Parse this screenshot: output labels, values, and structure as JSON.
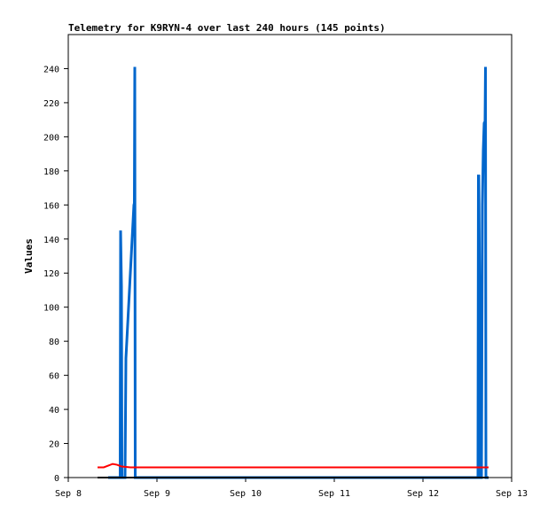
{
  "chart_data": {
    "type": "line",
    "title": "Telemetry for K9RYN-4 over last 240 hours (145 points)",
    "xlabel": "",
    "ylabel": "Values",
    "x_tick_labels": [
      "Sep 8",
      "Sep 9",
      "Sep 10",
      "Sep 11",
      "Sep 12",
      "Sep 13"
    ],
    "x_range_days": [
      8,
      13
    ],
    "ylim": [
      0,
      260
    ],
    "y_ticks": [
      0,
      20,
      40,
      60,
      80,
      100,
      120,
      140,
      160,
      180,
      200,
      220,
      240
    ],
    "grid": false,
    "legend": "none",
    "series": [
      {
        "color": "#0066cc",
        "style": "thick-line",
        "points": [
          [
            8.45,
            0
          ],
          [
            8.56,
            0
          ],
          [
            8.585,
            0
          ],
          [
            8.59,
            145
          ],
          [
            8.595,
            128
          ],
          [
            8.6,
            112
          ],
          [
            8.605,
            0
          ],
          [
            8.64,
            0
          ],
          [
            8.65,
            70
          ],
          [
            8.66,
            80
          ],
          [
            8.67,
            90
          ],
          [
            8.68,
            100
          ],
          [
            8.69,
            110
          ],
          [
            8.7,
            120
          ],
          [
            8.71,
            130
          ],
          [
            8.72,
            140
          ],
          [
            8.73,
            150
          ],
          [
            8.74,
            160
          ],
          [
            8.745,
            161
          ],
          [
            8.75,
            241
          ],
          [
            8.755,
            0
          ],
          [
            12.55,
            0
          ],
          [
            12.62,
            0
          ],
          [
            12.625,
            177
          ],
          [
            12.63,
            177
          ],
          [
            12.64,
            97
          ],
          [
            12.645,
            0
          ],
          [
            12.66,
            0
          ],
          [
            12.665,
            80
          ],
          [
            12.67,
            160
          ],
          [
            12.68,
            192
          ],
          [
            12.69,
            208
          ],
          [
            12.7,
            209
          ],
          [
            12.705,
            241
          ],
          [
            12.71,
            0
          ],
          [
            12.74,
            0
          ]
        ]
      },
      {
        "color": "#ff0000",
        "style": "line",
        "points": [
          [
            8.33,
            6
          ],
          [
            8.4,
            6
          ],
          [
            8.45,
            7
          ],
          [
            8.5,
            8
          ],
          [
            8.55,
            7.5
          ],
          [
            8.6,
            6.5
          ],
          [
            8.7,
            6
          ],
          [
            9.0,
            6
          ],
          [
            10.0,
            6
          ],
          [
            11.0,
            6
          ],
          [
            12.0,
            6
          ],
          [
            12.74,
            6
          ]
        ]
      },
      {
        "color": "#000000",
        "style": "line",
        "points": [
          [
            8.33,
            0
          ],
          [
            12.74,
            0
          ]
        ]
      }
    ]
  }
}
